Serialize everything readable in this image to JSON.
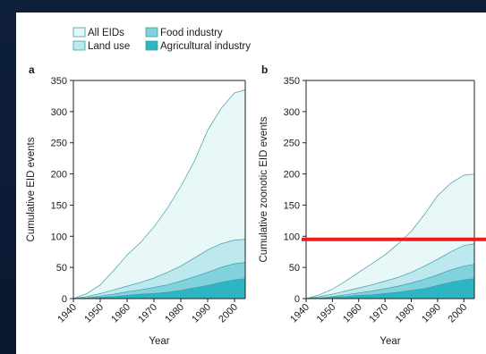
{
  "legend": {
    "items": [
      {
        "label": "All EIDs",
        "color": "#e8f7f8"
      },
      {
        "label": "Land use",
        "color": "#bde9ee"
      },
      {
        "label": "Food industry",
        "color": "#80d2dc"
      },
      {
        "label": "Agricultural industry",
        "color": "#2db6c2"
      }
    ]
  },
  "colors": {
    "stroke": "#3f9ca6",
    "axis": "#222222",
    "highlight_line": "#ee1c1c",
    "background": "#0c1a34",
    "panel": "#ffffff"
  },
  "chart_data": [
    {
      "panel": "a",
      "type": "area",
      "xlabel": "Year",
      "ylabel": "Cumulative EID events",
      "xlim": [
        1940,
        2004
      ],
      "ylim": [
        0,
        350
      ],
      "xticks": [
        1940,
        1950,
        1960,
        1970,
        1980,
        1990,
        2000
      ],
      "yticks": [
        0,
        50,
        100,
        150,
        200,
        250,
        300,
        350
      ],
      "x": [
        1940,
        1945,
        1950,
        1955,
        1960,
        1965,
        1970,
        1975,
        1980,
        1985,
        1990,
        1995,
        2000,
        2004
      ],
      "series": [
        {
          "name": "All EIDs",
          "values": [
            0,
            8,
            22,
            45,
            70,
            90,
            115,
            145,
            180,
            220,
            270,
            305,
            330,
            335
          ]
        },
        {
          "name": "Land use",
          "values": [
            0,
            3,
            8,
            14,
            20,
            26,
            33,
            42,
            52,
            65,
            78,
            88,
            94,
            95
          ]
        },
        {
          "name": "Food industry",
          "values": [
            0,
            1,
            4,
            7,
            11,
            14,
            18,
            22,
            28,
            35,
            42,
            50,
            56,
            58
          ]
        },
        {
          "name": "Agricultural industry",
          "values": [
            0,
            1,
            2,
            3,
            5,
            7,
            8,
            10,
            13,
            17,
            21,
            26,
            30,
            32
          ]
        }
      ]
    },
    {
      "panel": "b",
      "type": "area",
      "xlabel": "Year",
      "ylabel": "Cumulative zoonotic EID events",
      "xlim": [
        1940,
        2004
      ],
      "ylim": [
        0,
        350
      ],
      "xticks": [
        1940,
        1950,
        1960,
        1970,
        1980,
        1990,
        2000
      ],
      "yticks": [
        0,
        50,
        100,
        150,
        200,
        250,
        300,
        350
      ],
      "x": [
        1940,
        1945,
        1950,
        1955,
        1960,
        1965,
        1970,
        1975,
        1980,
        1985,
        1990,
        1995,
        2000,
        2004
      ],
      "series": [
        {
          "name": "All EIDs",
          "values": [
            0,
            6,
            15,
            28,
            42,
            56,
            70,
            88,
            108,
            135,
            165,
            185,
            198,
            200
          ]
        },
        {
          "name": "Land use",
          "values": [
            0,
            3,
            7,
            12,
            17,
            22,
            28,
            34,
            42,
            52,
            63,
            75,
            85,
            88
          ]
        },
        {
          "name": "Food industry",
          "values": [
            0,
            1,
            3,
            6,
            9,
            12,
            16,
            20,
            25,
            31,
            38,
            46,
            52,
            55
          ]
        },
        {
          "name": "Agricultural industry",
          "values": [
            0,
            1,
            2,
            3,
            5,
            6,
            8,
            10,
            13,
            16,
            21,
            26,
            30,
            32
          ]
        }
      ],
      "reference_line": {
        "y": 95
      }
    }
  ]
}
